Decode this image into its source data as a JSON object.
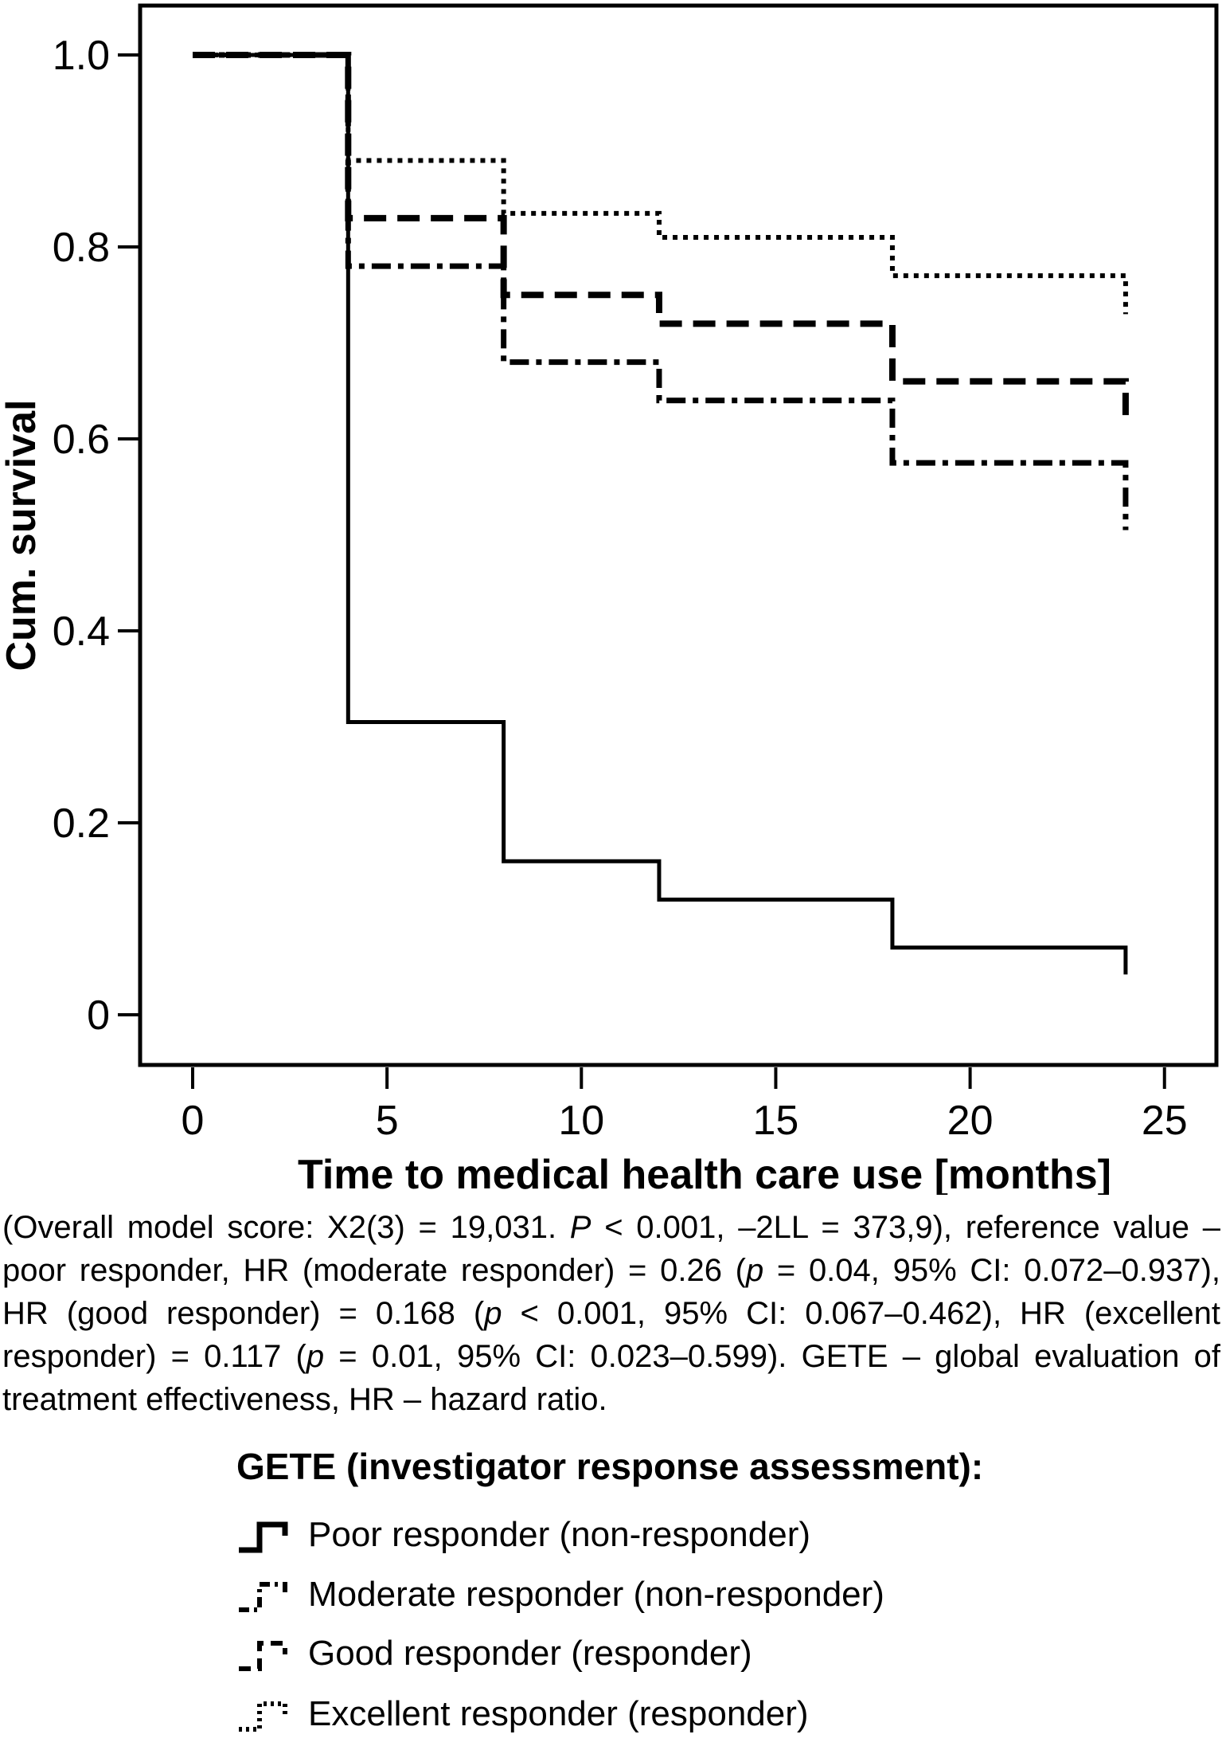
{
  "chart_data": {
    "type": "line",
    "subtype": "kaplan-meier-step",
    "xlabel": "Time to medical health care use [months]",
    "ylabel": "Cum. survival",
    "xlim": [
      0,
      26.4
    ],
    "ylim": [
      0,
      1.05
    ],
    "grid": false,
    "x_ticks": [
      {
        "value": 0,
        "label": "0"
      },
      {
        "value": 5,
        "label": "5"
      },
      {
        "value": 10,
        "label": "10"
      },
      {
        "value": 15,
        "label": "15"
      },
      {
        "value": 20,
        "label": "20"
      },
      {
        "value": 25,
        "label": "25"
      }
    ],
    "y_ticks": [
      {
        "value": 0,
        "label": "0"
      },
      {
        "value": 0.2,
        "label": "0.2"
      },
      {
        "value": 0.4,
        "label": "0.4"
      },
      {
        "value": 0.6,
        "label": "0.6"
      },
      {
        "value": 0.8,
        "label": "0.8"
      },
      {
        "value": 1.0,
        "label": "1.0"
      }
    ],
    "series": [
      {
        "name": "Poor responder (non-responder)",
        "style": "solid",
        "steps": [
          [
            0,
            1.0
          ],
          [
            4,
            0.305
          ],
          [
            8,
            0.16
          ],
          [
            12,
            0.12
          ],
          [
            18,
            0.07
          ]
        ],
        "end": [
          24,
          0.042
        ]
      },
      {
        "name": "Moderate responder (non-responder)",
        "style": "dashdot",
        "steps": [
          [
            0,
            1.0
          ],
          [
            4,
            0.78
          ],
          [
            8,
            0.68
          ],
          [
            12,
            0.64
          ],
          [
            18,
            0.575
          ]
        ],
        "end": [
          24,
          0.505
        ]
      },
      {
        "name": "Good responder (responder)",
        "style": "dashed",
        "steps": [
          [
            0,
            1.0
          ],
          [
            4,
            0.83
          ],
          [
            8,
            0.75
          ],
          [
            12,
            0.72
          ],
          [
            18,
            0.66
          ]
        ],
        "end": [
          24,
          0.615
        ]
      },
      {
        "name": "Excellent responder (responder)",
        "style": "dotted",
        "steps": [
          [
            0,
            1.0
          ],
          [
            4,
            0.89
          ],
          [
            8,
            0.835
          ],
          [
            12,
            0.81
          ],
          [
            18,
            0.77
          ]
        ],
        "end": [
          24,
          0.73
        ]
      }
    ],
    "legend_position": "bottom"
  },
  "caption": {
    "segments": [
      {
        "t": "(Overall model score: X2(3) = 19,031. ",
        "i": false
      },
      {
        "t": "P",
        "i": true
      },
      {
        "t": " < 0.001, –2LL = 373,9), reference value – poor responder, HR (moderate responder) = 0.26 (",
        "i": false
      },
      {
        "t": "p",
        "i": true
      },
      {
        "t": " = 0.04, 95% CI: 0.072–0.937), HR (good responder) = 0.168 (",
        "i": false
      },
      {
        "t": "p",
        "i": true
      },
      {
        "t": " < 0.001, 95% CI: 0.067–0.462), HR (excellent responder) = 0.117 (",
        "i": false
      },
      {
        "t": "p",
        "i": true
      },
      {
        "t": " = 0.01, 95% CI: 0.023–0.599). GETE – global evaluation of treatment effectiveness, HR – hazard ratio.",
        "i": false
      }
    ]
  },
  "legend": {
    "heading": "GETE (investigator response assessment):"
  }
}
